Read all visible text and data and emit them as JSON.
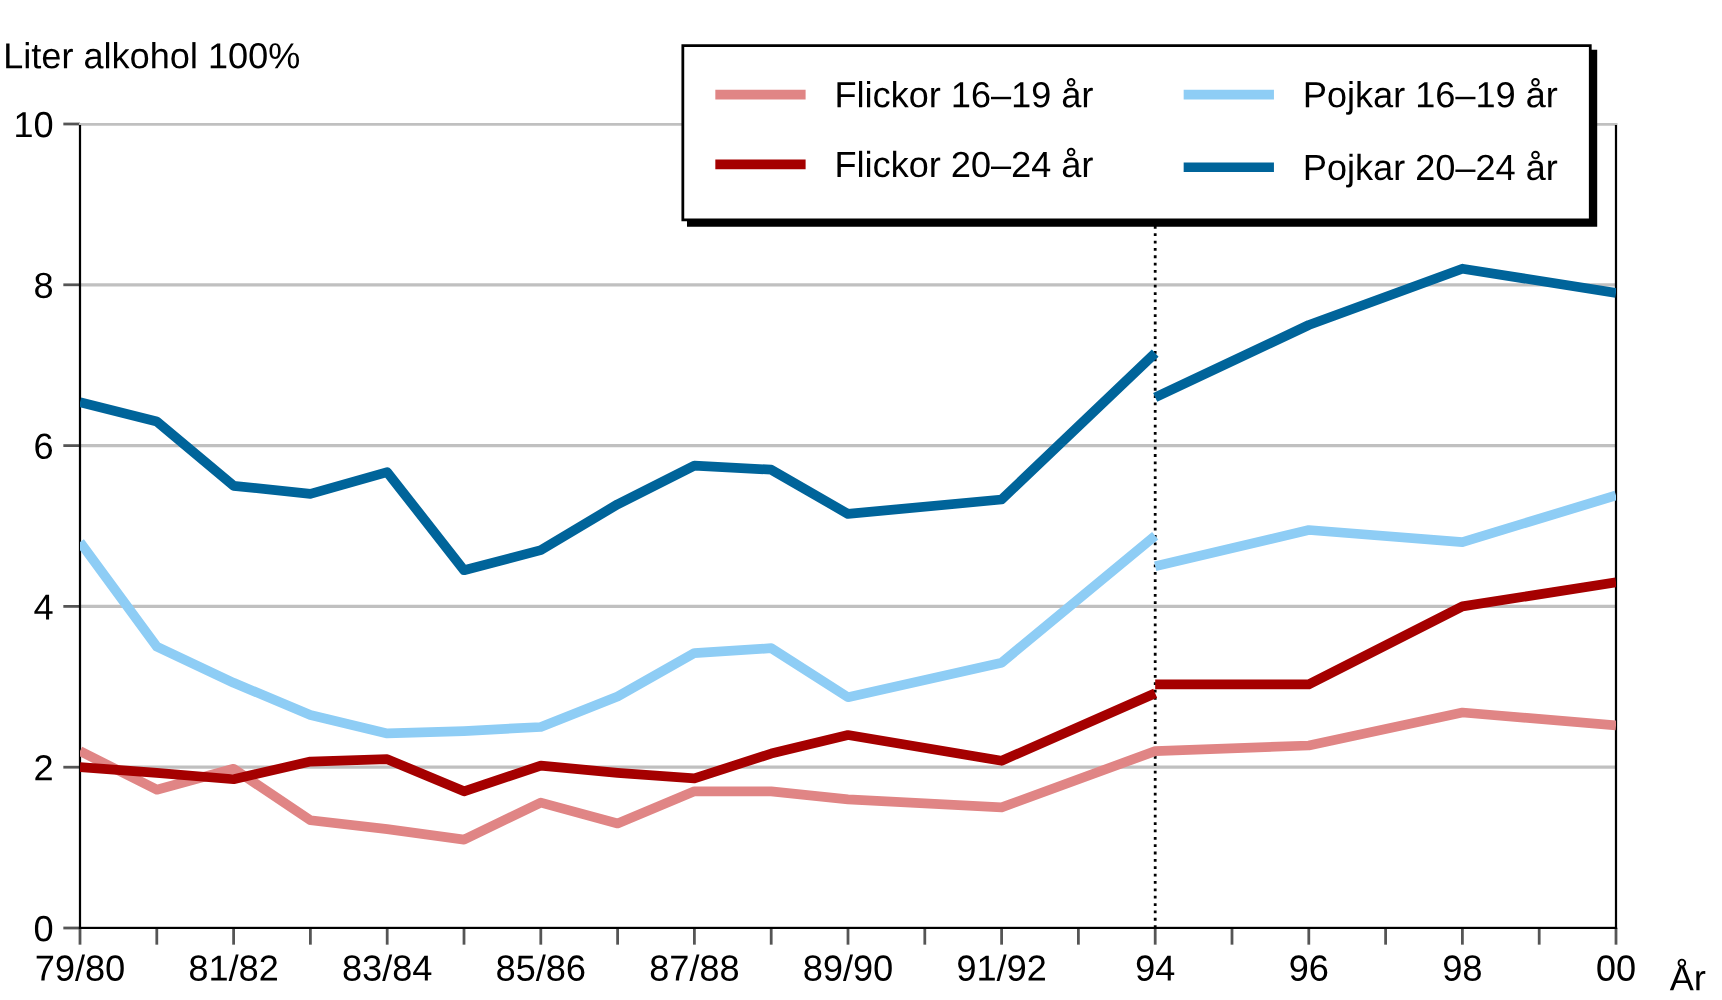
{
  "chart_data": {
    "type": "line",
    "ylabel": "Liter alkohol 100%",
    "xlabel": "År",
    "categories": [
      "79/80",
      null,
      "81/82",
      null,
      "83/84",
      null,
      "85/86",
      null,
      "87/88",
      null,
      "89/90",
      null,
      "91/92",
      null,
      "94",
      null,
      "96",
      null,
      "98",
      null,
      "00"
    ],
    "ylim": [
      0,
      10
    ],
    "yticks": [
      0,
      2,
      4,
      6,
      8,
      10
    ],
    "grid": "y",
    "legend": "top right",
    "line_style": "solid",
    "marker": "none",
    "ref_lines": [
      {
        "axis": "x",
        "value": "94",
        "label": null,
        "color": "#000000",
        "line_style": "dotted"
      }
    ],
    "series": [
      {
        "name": "Flickor 16–19 år",
        "color": "#e08585",
        "values": [
          2.2,
          1.72,
          1.98,
          1.34,
          1.23,
          1.1,
          1.56,
          1.3,
          1.7,
          1.7,
          1.6,
          null,
          1.5,
          null,
          2.2,
          null,
          2.27,
          null,
          2.68,
          null,
          2.52
        ]
      },
      {
        "name": "Flickor 20–24 år",
        "color": "#a50000",
        "values": [
          2.0,
          1.93,
          1.85,
          2.07,
          2.1,
          1.7,
          2.02,
          1.93,
          1.86,
          2.17,
          2.4,
          null,
          2.08,
          null,
          2.92,
          null,
          null,
          null,
          null,
          null,
          null
        ]
      },
      {
        "name": "Pojkar 16–19 år",
        "color": "#8ecdf5",
        "values": [
          4.8,
          3.5,
          3.05,
          2.65,
          2.42,
          2.45,
          2.5,
          2.88,
          3.42,
          3.48,
          2.87,
          null,
          3.3,
          null,
          4.88,
          null,
          null,
          null,
          null,
          null,
          null
        ]
      },
      {
        "name": "Pojkar 20–24 år",
        "color": "#00649a",
        "values": [
          6.54,
          6.3,
          5.5,
          5.4,
          5.67,
          4.45,
          4.7,
          5.27,
          5.75,
          5.7,
          5.15,
          null,
          5.33,
          null,
          7.15,
          null,
          null,
          null,
          null,
          null,
          null
        ]
      },
      {
        "color": "#a50000",
        "values": [
          null,
          null,
          null,
          null,
          null,
          null,
          null,
          null,
          null,
          null,
          null,
          null,
          null,
          null,
          3.03,
          null,
          3.03,
          null,
          4.0,
          null,
          4.3
        ]
      },
      {
        "color": "#8ecdf5",
        "values": [
          null,
          null,
          null,
          null,
          null,
          null,
          null,
          null,
          null,
          null,
          null,
          null,
          null,
          null,
          4.5,
          null,
          4.95,
          null,
          4.8,
          null,
          5.38
        ]
      },
      {
        "color": "#00649a",
        "values": [
          null,
          null,
          null,
          null,
          null,
          null,
          null,
          null,
          null,
          null,
          null,
          null,
          null,
          null,
          6.6,
          null,
          7.5,
          null,
          8.2,
          null,
          7.9
        ]
      }
    ]
  }
}
